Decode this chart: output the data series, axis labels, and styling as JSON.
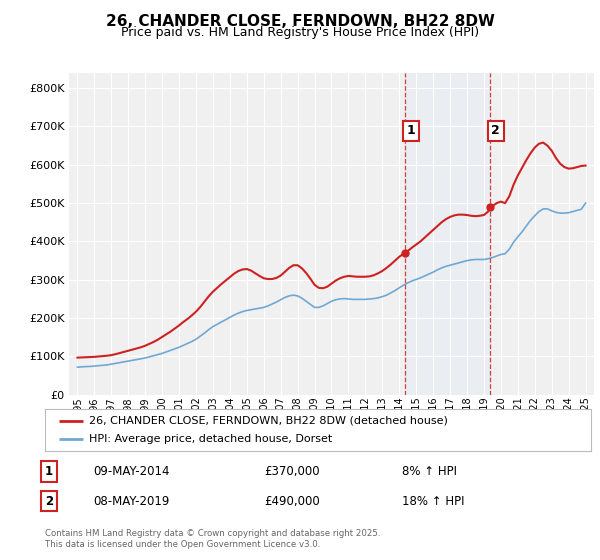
{
  "title": "26, CHANDER CLOSE, FERNDOWN, BH22 8DW",
  "subtitle": "Price paid vs. HM Land Registry's House Price Index (HPI)",
  "ylabel_ticks": [
    "£0",
    "£100K",
    "£200K",
    "£300K",
    "£400K",
    "£500K",
    "£600K",
    "£700K",
    "£800K"
  ],
  "ytick_values": [
    0,
    100000,
    200000,
    300000,
    400000,
    500000,
    600000,
    700000,
    800000
  ],
  "ylim": [
    0,
    840000
  ],
  "xlim_start": 1994.5,
  "xlim_end": 2025.5,
  "xtick_years": [
    1995,
    1996,
    1997,
    1998,
    1999,
    2000,
    2001,
    2002,
    2003,
    2004,
    2005,
    2006,
    2007,
    2008,
    2009,
    2010,
    2011,
    2012,
    2013,
    2014,
    2015,
    2016,
    2017,
    2018,
    2019,
    2020,
    2021,
    2022,
    2023,
    2024,
    2025
  ],
  "hpi_color": "#6fa8d4",
  "hpi_fill_color": "#d0e4f5",
  "price_color": "#cc2222",
  "vline1_x": 2014.35,
  "vline2_x": 2019.35,
  "vline_color": "#cc2222",
  "vline_fill_color": "#dde8f5",
  "marker1_x": 2014.35,
  "marker1_y": 370000,
  "marker2_x": 2019.35,
  "marker2_y": 490000,
  "legend_label1": "26, CHANDER CLOSE, FERNDOWN, BH22 8DW (detached house)",
  "legend_label2": "HPI: Average price, detached house, Dorset",
  "annotation1_num": "1",
  "annotation1_date": "09-MAY-2014",
  "annotation1_price": "£370,000",
  "annotation1_hpi": "8% ↑ HPI",
  "annotation2_num": "2",
  "annotation2_date": "08-MAY-2019",
  "annotation2_price": "£490,000",
  "annotation2_hpi": "18% ↑ HPI",
  "footer": "Contains HM Land Registry data © Crown copyright and database right 2025.\nThis data is licensed under the Open Government Licence v3.0.",
  "bg_color": "#ffffff",
  "plot_bg_color": "#f0f0f0",
  "grid_color": "#ffffff",
  "hpi_data": [
    [
      1995,
      72000
    ],
    [
      1995.25,
      73000
    ],
    [
      1995.5,
      73500
    ],
    [
      1995.75,
      74000
    ],
    [
      1996,
      75000
    ],
    [
      1996.25,
      76000
    ],
    [
      1996.5,
      77000
    ],
    [
      1996.75,
      78000
    ],
    [
      1997,
      80000
    ],
    [
      1997.25,
      82000
    ],
    [
      1997.5,
      84000
    ],
    [
      1997.75,
      86000
    ],
    [
      1998,
      88000
    ],
    [
      1998.25,
      90000
    ],
    [
      1998.5,
      92000
    ],
    [
      1998.75,
      94000
    ],
    [
      1999,
      96000
    ],
    [
      1999.25,
      99000
    ],
    [
      1999.5,
      102000
    ],
    [
      1999.75,
      105000
    ],
    [
      2000,
      108000
    ],
    [
      2000.25,
      112000
    ],
    [
      2000.5,
      116000
    ],
    [
      2000.75,
      120000
    ],
    [
      2001,
      124000
    ],
    [
      2001.25,
      129000
    ],
    [
      2001.5,
      134000
    ],
    [
      2001.75,
      139000
    ],
    [
      2002,
      145000
    ],
    [
      2002.25,
      153000
    ],
    [
      2002.5,
      161000
    ],
    [
      2002.75,
      170000
    ],
    [
      2003,
      178000
    ],
    [
      2003.25,
      184000
    ],
    [
      2003.5,
      190000
    ],
    [
      2003.75,
      196000
    ],
    [
      2004,
      202000
    ],
    [
      2004.25,
      208000
    ],
    [
      2004.5,
      213000
    ],
    [
      2004.75,
      217000
    ],
    [
      2005,
      220000
    ],
    [
      2005.25,
      222000
    ],
    [
      2005.5,
      224000
    ],
    [
      2005.75,
      226000
    ],
    [
      2006,
      228000
    ],
    [
      2006.25,
      232000
    ],
    [
      2006.5,
      237000
    ],
    [
      2006.75,
      242000
    ],
    [
      2007,
      248000
    ],
    [
      2007.25,
      254000
    ],
    [
      2007.5,
      258000
    ],
    [
      2007.75,
      260000
    ],
    [
      2008,
      258000
    ],
    [
      2008.25,
      252000
    ],
    [
      2008.5,
      244000
    ],
    [
      2008.75,
      236000
    ],
    [
      2009,
      228000
    ],
    [
      2009.25,
      228000
    ],
    [
      2009.5,
      232000
    ],
    [
      2009.75,
      238000
    ],
    [
      2010,
      244000
    ],
    [
      2010.25,
      248000
    ],
    [
      2010.5,
      250000
    ],
    [
      2010.75,
      251000
    ],
    [
      2011,
      250000
    ],
    [
      2011.25,
      249000
    ],
    [
      2011.5,
      249000
    ],
    [
      2011.75,
      249000
    ],
    [
      2012,
      249000
    ],
    [
      2012.25,
      250000
    ],
    [
      2012.5,
      251000
    ],
    [
      2012.75,
      253000
    ],
    [
      2013,
      256000
    ],
    [
      2013.25,
      260000
    ],
    [
      2013.5,
      266000
    ],
    [
      2013.75,
      272000
    ],
    [
      2014,
      279000
    ],
    [
      2014.25,
      286000
    ],
    [
      2014.5,
      292000
    ],
    [
      2014.75,
      297000
    ],
    [
      2015,
      301000
    ],
    [
      2015.25,
      305000
    ],
    [
      2015.5,
      310000
    ],
    [
      2015.75,
      315000
    ],
    [
      2016,
      320000
    ],
    [
      2016.25,
      326000
    ],
    [
      2016.5,
      331000
    ],
    [
      2016.75,
      335000
    ],
    [
      2017,
      338000
    ],
    [
      2017.25,
      341000
    ],
    [
      2017.5,
      344000
    ],
    [
      2017.75,
      347000
    ],
    [
      2018,
      350000
    ],
    [
      2018.25,
      352000
    ],
    [
      2018.5,
      353000
    ],
    [
      2018.75,
      353000
    ],
    [
      2019,
      353000
    ],
    [
      2019.25,
      355000
    ],
    [
      2019.5,
      358000
    ],
    [
      2019.75,
      362000
    ],
    [
      2020,
      366000
    ],
    [
      2020.25,
      368000
    ],
    [
      2020.5,
      380000
    ],
    [
      2020.75,
      398000
    ],
    [
      2021,
      412000
    ],
    [
      2021.25,
      425000
    ],
    [
      2021.5,
      440000
    ],
    [
      2021.75,
      455000
    ],
    [
      2022,
      467000
    ],
    [
      2022.25,
      478000
    ],
    [
      2022.5,
      485000
    ],
    [
      2022.75,
      485000
    ],
    [
      2023,
      480000
    ],
    [
      2023.25,
      476000
    ],
    [
      2023.5,
      474000
    ],
    [
      2023.75,
      474000
    ],
    [
      2024,
      475000
    ],
    [
      2024.25,
      478000
    ],
    [
      2024.5,
      481000
    ],
    [
      2024.75,
      484000
    ],
    [
      2025,
      500000
    ]
  ],
  "price_data": [
    [
      1995,
      97000
    ],
    [
      1995.25,
      97500
    ],
    [
      1995.5,
      98000
    ],
    [
      1995.75,
      98500
    ],
    [
      1996,
      99000
    ],
    [
      1996.25,
      100000
    ],
    [
      1996.5,
      101000
    ],
    [
      1996.75,
      102000
    ],
    [
      1997,
      103500
    ],
    [
      1997.25,
      106000
    ],
    [
      1997.5,
      109000
    ],
    [
      1997.75,
      112000
    ],
    [
      1998,
      115000
    ],
    [
      1998.25,
      118000
    ],
    [
      1998.5,
      121000
    ],
    [
      1998.75,
      124000
    ],
    [
      1999,
      128000
    ],
    [
      1999.25,
      133000
    ],
    [
      1999.5,
      138000
    ],
    [
      1999.75,
      144000
    ],
    [
      2000,
      151000
    ],
    [
      2000.25,
      158000
    ],
    [
      2000.5,
      165000
    ],
    [
      2000.75,
      173000
    ],
    [
      2001,
      181000
    ],
    [
      2001.25,
      190000
    ],
    [
      2001.5,
      198000
    ],
    [
      2001.75,
      207000
    ],
    [
      2002,
      217000
    ],
    [
      2002.25,
      229000
    ],
    [
      2002.5,
      243000
    ],
    [
      2002.75,
      257000
    ],
    [
      2003,
      269000
    ],
    [
      2003.25,
      279000
    ],
    [
      2003.5,
      289000
    ],
    [
      2003.75,
      298000
    ],
    [
      2004,
      307000
    ],
    [
      2004.25,
      316000
    ],
    [
      2004.5,
      323000
    ],
    [
      2004.75,
      327000
    ],
    [
      2005,
      328000
    ],
    [
      2005.25,
      324000
    ],
    [
      2005.5,
      317000
    ],
    [
      2005.75,
      310000
    ],
    [
      2006,
      304000
    ],
    [
      2006.25,
      302000
    ],
    [
      2006.5,
      302000
    ],
    [
      2006.75,
      305000
    ],
    [
      2007,
      311000
    ],
    [
      2007.25,
      321000
    ],
    [
      2007.5,
      331000
    ],
    [
      2007.75,
      338000
    ],
    [
      2008,
      338000
    ],
    [
      2008.25,
      330000
    ],
    [
      2008.5,
      318000
    ],
    [
      2008.75,
      303000
    ],
    [
      2009,
      287000
    ],
    [
      2009.25,
      279000
    ],
    [
      2009.5,
      278000
    ],
    [
      2009.75,
      282000
    ],
    [
      2010,
      290000
    ],
    [
      2010.25,
      298000
    ],
    [
      2010.5,
      304000
    ],
    [
      2010.75,
      308000
    ],
    [
      2011,
      310000
    ],
    [
      2011.25,
      309000
    ],
    [
      2011.5,
      308000
    ],
    [
      2011.75,
      308000
    ],
    [
      2012,
      308000
    ],
    [
      2012.25,
      309000
    ],
    [
      2012.5,
      312000
    ],
    [
      2012.75,
      317000
    ],
    [
      2013,
      323000
    ],
    [
      2013.25,
      331000
    ],
    [
      2013.5,
      340000
    ],
    [
      2013.75,
      350000
    ],
    [
      2014,
      360000
    ],
    [
      2014.25,
      368000
    ],
    [
      2014.35,
      370000
    ],
    [
      2014.5,
      375000
    ],
    [
      2014.75,
      384000
    ],
    [
      2015,
      392000
    ],
    [
      2015.25,
      400000
    ],
    [
      2015.5,
      410000
    ],
    [
      2015.75,
      420000
    ],
    [
      2016,
      430000
    ],
    [
      2016.25,
      440000
    ],
    [
      2016.5,
      450000
    ],
    [
      2016.75,
      458000
    ],
    [
      2017,
      464000
    ],
    [
      2017.25,
      468000
    ],
    [
      2017.5,
      470000
    ],
    [
      2017.75,
      470000
    ],
    [
      2018,
      469000
    ],
    [
      2018.25,
      467000
    ],
    [
      2018.5,
      466000
    ],
    [
      2018.75,
      467000
    ],
    [
      2019,
      469000
    ],
    [
      2019.25,
      478000
    ],
    [
      2019.35,
      490000
    ],
    [
      2019.5,
      492000
    ],
    [
      2019.75,
      500000
    ],
    [
      2020,
      504000
    ],
    [
      2020.25,
      500000
    ],
    [
      2020.5,
      518000
    ],
    [
      2020.75,
      548000
    ],
    [
      2021,
      572000
    ],
    [
      2021.25,
      592000
    ],
    [
      2021.5,
      612000
    ],
    [
      2021.75,
      630000
    ],
    [
      2022,
      645000
    ],
    [
      2022.25,
      655000
    ],
    [
      2022.5,
      658000
    ],
    [
      2022.75,
      650000
    ],
    [
      2023,
      637000
    ],
    [
      2023.25,
      618000
    ],
    [
      2023.5,
      603000
    ],
    [
      2023.75,
      594000
    ],
    [
      2024,
      590000
    ],
    [
      2024.25,
      591000
    ],
    [
      2024.5,
      594000
    ],
    [
      2024.75,
      597000
    ],
    [
      2025,
      598000
    ]
  ]
}
